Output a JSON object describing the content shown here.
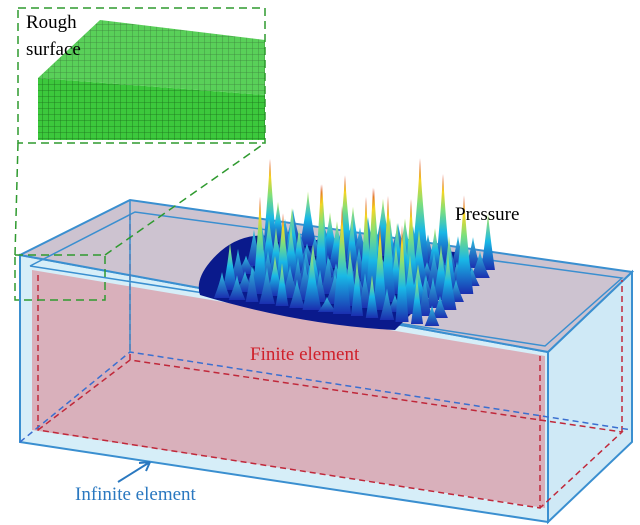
{
  "labels": {
    "rough_surface": [
      "Rough",
      "surface"
    ],
    "pressure": "Pressure",
    "finite_element": "Finite element",
    "infinite_element": "Infinite element"
  }
}
